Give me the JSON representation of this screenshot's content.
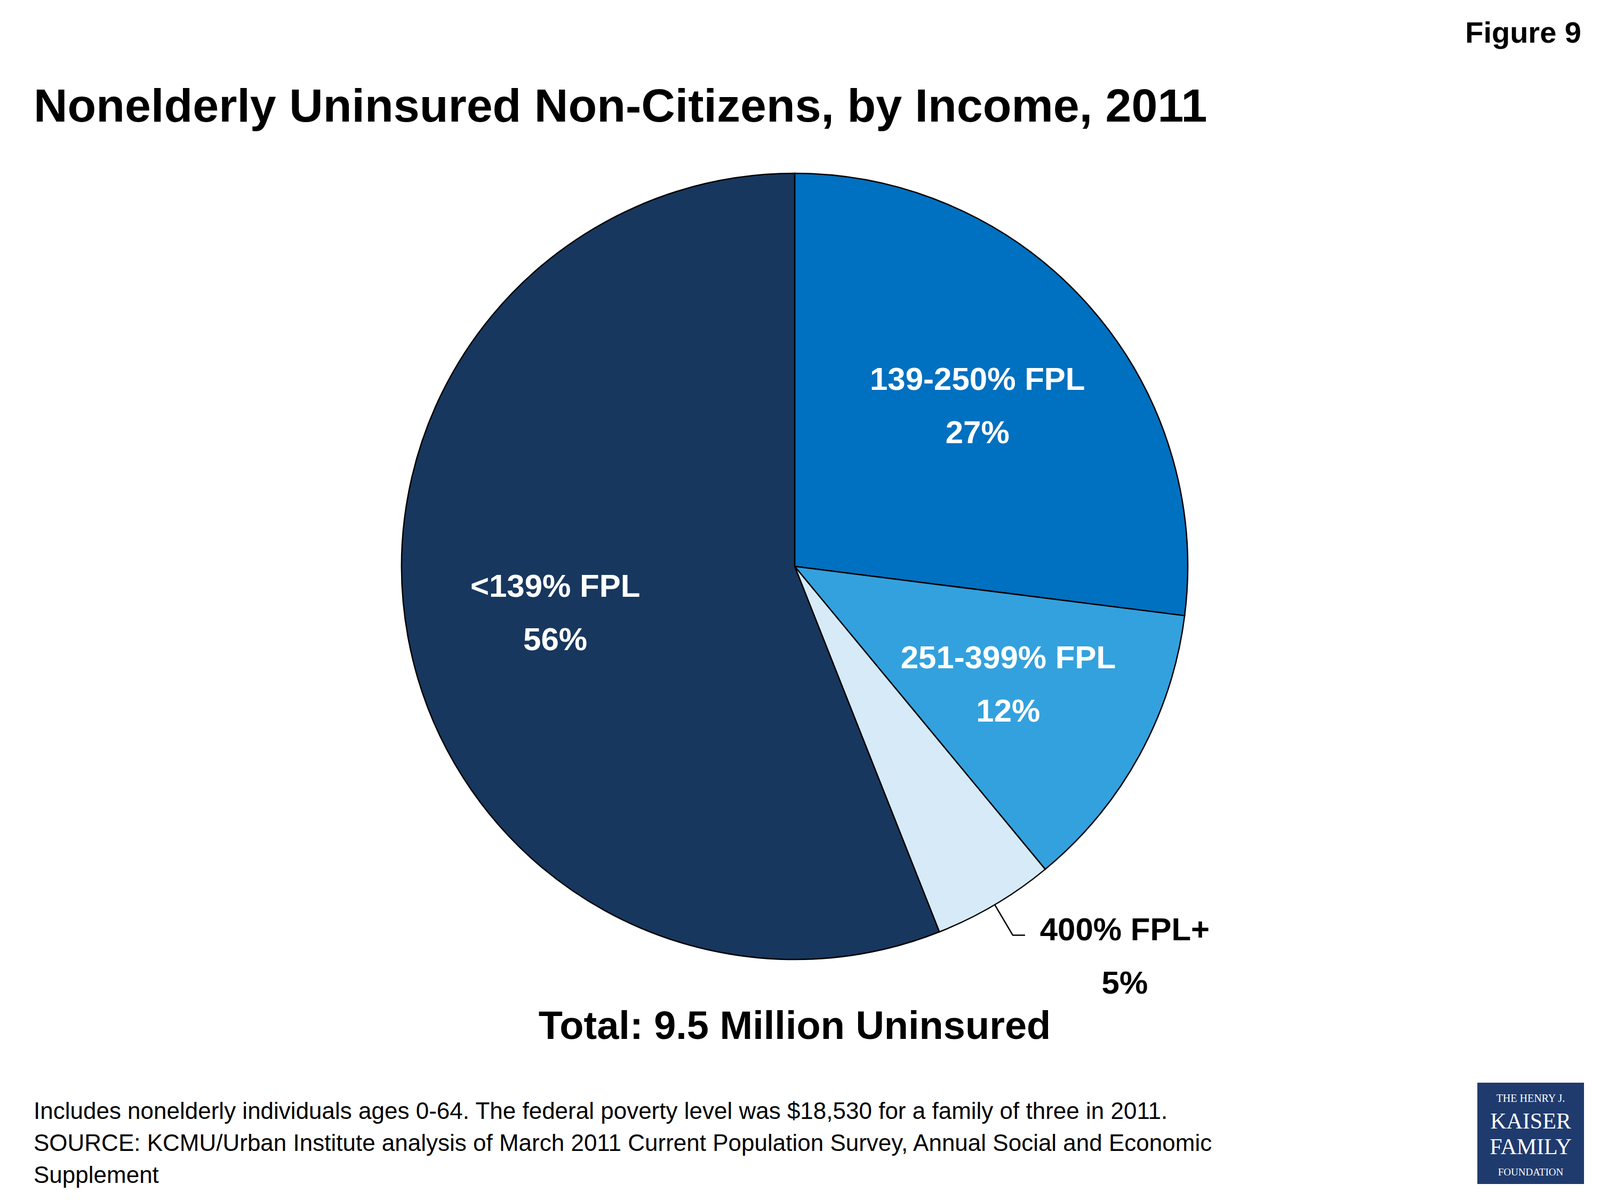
{
  "chart_data": {
    "type": "pie",
    "figure_label": "Figure 9",
    "title": "Nonelderly Uninsured Non-Citizens, by Income, 2011",
    "categories": [
      "139-250% FPL",
      "251-399% FPL",
      "400% FPL+",
      "<139% FPL"
    ],
    "values": [
      27,
      12,
      5,
      56
    ],
    "value_labels": [
      "27%",
      "12%",
      "5%",
      "56%"
    ],
    "colors": [
      "#0070c0",
      "#33a1de",
      "#d6eaf8",
      "#17375e"
    ],
    "data_labels": true,
    "annotations": [
      "Total: 9.5 Million Uninsured"
    ],
    "notes": [
      "Includes nonelderly individuals ages 0-64. The federal poverty level was  $18,530 for a family of three in 2011.",
      "SOURCE: KCMU/Urban Institute analysis of March 2011 Current Population Survey, Annual Social and Economic",
      "Supplement"
    ],
    "logo": [
      "THE HENRY J.",
      "KAISER",
      "FAMILY",
      "FOUNDATION"
    ]
  }
}
